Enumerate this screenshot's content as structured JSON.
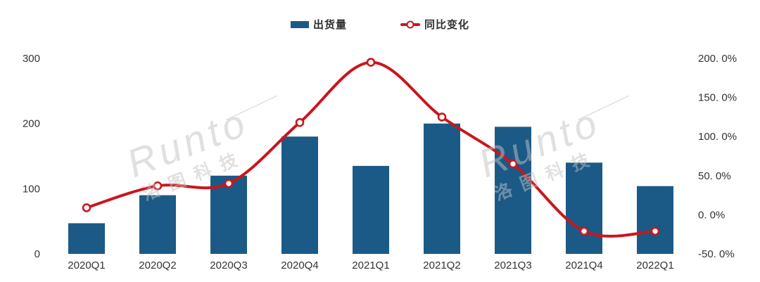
{
  "chart_data": {
    "type": "combo-bar-line",
    "categories": [
      "2020Q1",
      "2020Q2",
      "2020Q3",
      "2020Q4",
      "2021Q1",
      "2021Q2",
      "2021Q3",
      "2021Q4",
      "2022Q1"
    ],
    "series": [
      {
        "name": "出货量",
        "type": "bar",
        "axis": "left",
        "color": "#1b5a86",
        "values": [
          47,
          90,
          120,
          180,
          135,
          200,
          195,
          140,
          104
        ]
      },
      {
        "name": "同比变化",
        "type": "line",
        "axis": "right",
        "color": "#c9161d",
        "marker_fill": "#ffffff",
        "values_pct": [
          9,
          37,
          40,
          118,
          195,
          125,
          65,
          -21,
          -21
        ]
      }
    ],
    "left_axis": {
      "range": [
        0,
        300
      ],
      "ticks": [
        {
          "label": "0",
          "value": 0
        },
        {
          "label": "100",
          "value": 100
        },
        {
          "label": "200",
          "value": 200
        },
        {
          "label": "300",
          "value": 300
        }
      ]
    },
    "right_axis": {
      "range_pct": [
        -50,
        200
      ],
      "ticks": [
        {
          "label": "-50. 0%",
          "value": -50
        },
        {
          "label": "0. 0%",
          "value": 0
        },
        {
          "label": "50. 0%",
          "value": 50
        },
        {
          "label": "100. 0%",
          "value": 100
        },
        {
          "label": "150. 0%",
          "value": 150
        },
        {
          "label": "200. 0%",
          "value": 200
        }
      ]
    },
    "legend_position": "top-center",
    "grid": false,
    "axis_text_color": "#333333",
    "watermark": {
      "latin": "Runto",
      "cn": "洛图科技",
      "color": "#c3c3c3"
    }
  }
}
